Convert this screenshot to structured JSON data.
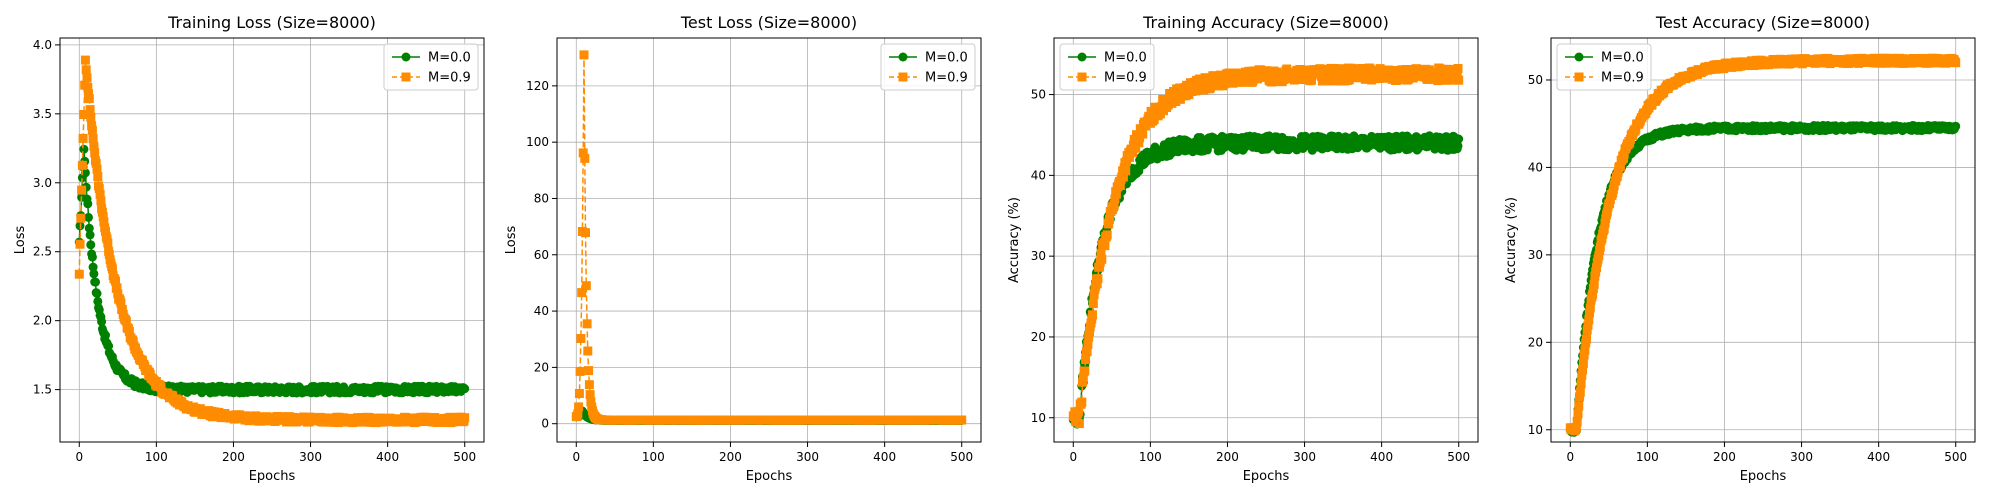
{
  "colors": {
    "m0": "#008000",
    "m9": "#ff8c00",
    "grid": "#b0b0b0"
  },
  "chart_data": [
    {
      "type": "line",
      "title": "Training Loss (Size=8000)",
      "xlabel": "Epochs",
      "ylabel": "Loss",
      "xlim": [
        -25,
        525
      ],
      "ylim": [
        1.12,
        4.05
      ],
      "xticks": [
        0,
        100,
        200,
        300,
        400,
        500
      ],
      "yticks": [
        1.5,
        2.0,
        2.5,
        3.0,
        3.5,
        4.0
      ],
      "ytick_labels": [
        "1.5",
        "2.0",
        "2.5",
        "3.0",
        "3.5",
        "4.0"
      ],
      "grid": true,
      "legend": "top-right",
      "series": [
        {
          "name": "M=0.0",
          "marker": "circle",
          "style": "solid",
          "curve": {
            "kind": "loss",
            "start": 2.55,
            "peak": 3.25,
            "peak_epoch": 6,
            "end": 1.5,
            "tau": 18,
            "noise": 0.025
          }
        },
        {
          "name": "M=0.9",
          "marker": "square",
          "style": "dashed",
          "curve": {
            "kind": "loss",
            "start": 2.35,
            "peak": 3.9,
            "peak_epoch": 8,
            "end": 1.28,
            "tau": 40,
            "noise": 0.02
          }
        }
      ]
    },
    {
      "type": "line",
      "title": "Test Loss (Size=8000)",
      "xlabel": "Epochs",
      "ylabel": "Loss",
      "xlim": [
        -25,
        525
      ],
      "ylim": [
        -6.5,
        137
      ],
      "xticks": [
        0,
        100,
        200,
        300,
        400,
        500
      ],
      "yticks": [
        0,
        20,
        40,
        60,
        80,
        100,
        120
      ],
      "ytick_labels": [
        "0",
        "20",
        "40",
        "60",
        "80",
        "100",
        "120"
      ],
      "grid": true,
      "legend": "top-right",
      "series": [
        {
          "name": "M=0.0",
          "marker": "circle",
          "style": "solid",
          "curve": {
            "kind": "spike",
            "start": 2.5,
            "peak": 4.5,
            "peak_epoch": 8,
            "end": 1.2,
            "tau": 6,
            "noise": 0.05
          }
        },
        {
          "name": "M=0.9",
          "marker": "square",
          "style": "dashed",
          "curve": {
            "kind": "spike",
            "start": 2.5,
            "peak": 131,
            "peak_epoch": 10,
            "end": 1.3,
            "tau": 3,
            "noise": 0.05
          }
        }
      ]
    },
    {
      "type": "line",
      "title": "Training Accuracy (Size=8000)",
      "xlabel": "Epochs",
      "ylabel": "Accuracy (%)",
      "xlim": [
        -25,
        525
      ],
      "ylim": [
        7,
        57
      ],
      "xticks": [
        0,
        100,
        200,
        300,
        400,
        500
      ],
      "yticks": [
        10,
        20,
        30,
        40,
        50
      ],
      "ytick_labels": [
        "10",
        "20",
        "30",
        "40",
        "50"
      ],
      "grid": true,
      "legend": "top-left",
      "series": [
        {
          "name": "M=0.0",
          "marker": "circle",
          "style": "solid",
          "curve": {
            "kind": "acc",
            "start": 10,
            "end": 44,
            "tau": 30,
            "noise": 0.9
          }
        },
        {
          "name": "M=0.9",
          "marker": "square",
          "style": "dashed",
          "curve": {
            "kind": "acc",
            "start": 10,
            "end": 52.5,
            "tau": 45,
            "noise": 0.8
          }
        }
      ]
    },
    {
      "type": "line",
      "title": "Test Accuracy (Size=8000)",
      "xlabel": "Epochs",
      "ylabel": "Accuracy (%)",
      "xlim": [
        -25,
        525
      ],
      "ylim": [
        8.6,
        54.8
      ],
      "xticks": [
        0,
        100,
        200,
        300,
        400,
        500
      ],
      "yticks": [
        10,
        20,
        30,
        40,
        50
      ],
      "ytick_labels": [
        "10",
        "20",
        "30",
        "40",
        "50"
      ],
      "grid": true,
      "legend": "top-left",
      "series": [
        {
          "name": "M=0.0",
          "marker": "circle",
          "style": "solid",
          "curve": {
            "kind": "acc",
            "start": 10,
            "end": 44.5,
            "tau": 28,
            "noise": 0.3
          }
        },
        {
          "name": "M=0.9",
          "marker": "square",
          "style": "dashed",
          "curve": {
            "kind": "acc",
            "start": 10,
            "end": 52.2,
            "tau": 45,
            "noise": 0.3
          }
        }
      ]
    }
  ]
}
